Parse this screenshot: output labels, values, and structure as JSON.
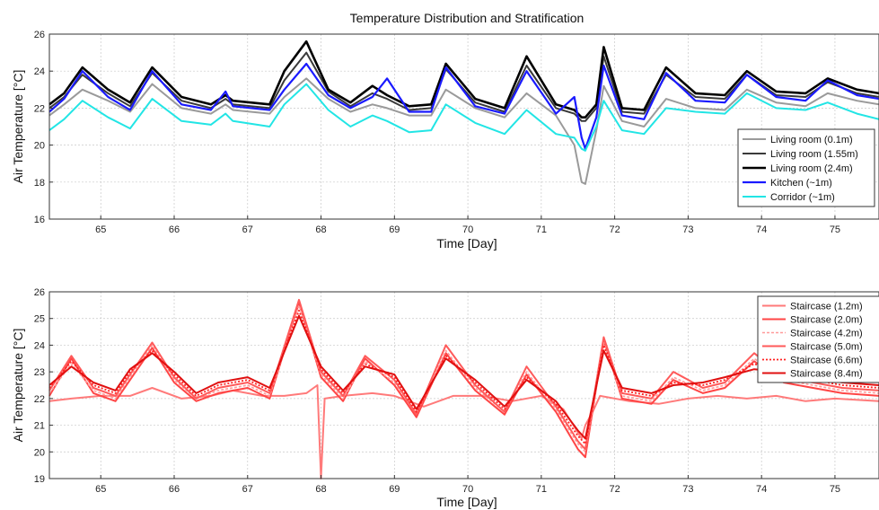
{
  "chart_data": [
    {
      "type": "line",
      "title": "Temperature Distribution and Stratification",
      "xlabel": "Time [Day]",
      "ylabel": "Air Temperature [°C]",
      "xlim": [
        64.3,
        75.6
      ],
      "ylim": [
        16,
        26
      ],
      "xticks": [
        65,
        66,
        67,
        68,
        69,
        70,
        71,
        72,
        73,
        74,
        75
      ],
      "yticks": [
        16,
        18,
        20,
        22,
        24,
        26
      ],
      "grid": true,
      "legend_position": "bottom-right",
      "series": [
        {
          "name": "Living room (0.1m)",
          "color": "#9a9a9a",
          "width": 2,
          "x": [
            64.3,
            64.5,
            64.75,
            65.1,
            65.4,
            65.7,
            66.1,
            66.5,
            66.7,
            66.8,
            67.3,
            67.5,
            67.8,
            68.1,
            68.4,
            68.7,
            68.9,
            69.2,
            69.5,
            69.7,
            70.1,
            70.5,
            70.8,
            71.2,
            71.45,
            71.55,
            71.6,
            71.75,
            71.85,
            72.1,
            72.4,
            72.7,
            73.1,
            73.5,
            73.8,
            74.2,
            74.6,
            74.9,
            75.3,
            75.6
          ],
          "y": [
            21.6,
            22.2,
            23.0,
            22.4,
            21.8,
            23.3,
            22.0,
            21.7,
            22.2,
            21.9,
            21.7,
            22.6,
            23.6,
            22.5,
            21.8,
            22.2,
            22.0,
            21.6,
            21.6,
            23.0,
            22.0,
            21.5,
            22.8,
            21.6,
            20.0,
            18.0,
            17.9,
            20.8,
            23.2,
            21.3,
            21.0,
            22.5,
            22.0,
            21.9,
            23.0,
            22.3,
            22.1,
            22.8,
            22.4,
            22.2
          ]
        },
        {
          "name": "Living room (1.55m)",
          "color": "#3a3a3a",
          "width": 2,
          "x": [
            64.3,
            64.5,
            64.75,
            65.1,
            65.4,
            65.7,
            66.1,
            66.5,
            66.7,
            66.8,
            67.3,
            67.5,
            67.8,
            68.1,
            68.4,
            68.7,
            68.9,
            69.2,
            69.5,
            69.7,
            70.1,
            70.5,
            70.8,
            71.2,
            71.45,
            71.55,
            71.6,
            71.75,
            71.85,
            72.1,
            72.4,
            72.7,
            73.1,
            73.5,
            73.8,
            74.2,
            74.6,
            74.9,
            75.3,
            75.6
          ],
          "y": [
            22.0,
            22.6,
            23.8,
            22.8,
            22.1,
            23.9,
            22.4,
            22.0,
            22.5,
            22.2,
            22.0,
            23.5,
            25.0,
            22.9,
            22.1,
            22.8,
            22.5,
            21.9,
            22.0,
            24.1,
            22.3,
            21.8,
            24.3,
            22.0,
            21.7,
            21.3,
            21.3,
            22.0,
            24.8,
            21.8,
            21.7,
            23.8,
            22.6,
            22.5,
            23.8,
            22.7,
            22.6,
            23.4,
            22.8,
            22.6
          ]
        },
        {
          "name": "Living room (2.4m)",
          "color": "#000000",
          "width": 2.6,
          "x": [
            64.3,
            64.5,
            64.75,
            65.1,
            65.4,
            65.7,
            66.1,
            66.5,
            66.7,
            66.8,
            67.3,
            67.5,
            67.8,
            68.1,
            68.4,
            68.7,
            68.9,
            69.2,
            69.5,
            69.7,
            70.1,
            70.5,
            70.8,
            71.2,
            71.45,
            71.55,
            71.6,
            71.75,
            71.85,
            72.1,
            72.4,
            72.7,
            73.1,
            73.5,
            73.8,
            74.2,
            74.6,
            74.9,
            75.3,
            75.6
          ],
          "y": [
            22.2,
            22.8,
            24.2,
            23.0,
            22.3,
            24.2,
            22.6,
            22.2,
            22.7,
            22.4,
            22.2,
            24.0,
            25.6,
            23.0,
            22.3,
            23.2,
            22.7,
            22.1,
            22.2,
            24.4,
            22.5,
            22.0,
            24.8,
            22.2,
            21.9,
            21.5,
            21.5,
            22.2,
            25.3,
            22.0,
            21.9,
            24.2,
            22.8,
            22.7,
            24.0,
            22.9,
            22.8,
            23.6,
            23.0,
            22.8
          ]
        },
        {
          "name": "Kitchen (~1m)",
          "color": "#1a1aff",
          "width": 2.2,
          "x": [
            64.3,
            64.5,
            64.75,
            65.1,
            65.4,
            65.7,
            66.1,
            66.5,
            66.7,
            66.8,
            67.3,
            67.5,
            67.8,
            68.1,
            68.4,
            68.7,
            68.9,
            69.2,
            69.5,
            69.7,
            70.1,
            70.5,
            70.8,
            71.2,
            71.45,
            71.55,
            71.6,
            71.75,
            71.85,
            72.1,
            72.4,
            72.7,
            73.1,
            73.5,
            73.8,
            74.2,
            74.6,
            74.9,
            75.3,
            75.6
          ],
          "y": [
            21.8,
            22.5,
            24.0,
            22.6,
            21.9,
            24.0,
            22.2,
            21.9,
            22.9,
            22.1,
            21.9,
            23.0,
            24.4,
            22.7,
            22.0,
            22.6,
            23.6,
            21.8,
            21.8,
            24.2,
            22.1,
            21.7,
            24.0,
            21.7,
            22.6,
            20.4,
            19.8,
            21.5,
            24.3,
            21.6,
            21.4,
            23.9,
            22.4,
            22.3,
            23.8,
            22.6,
            22.4,
            23.5,
            22.7,
            22.5
          ]
        },
        {
          "name": "Corridor (~1m)",
          "color": "#22e5e5",
          "width": 2,
          "x": [
            64.3,
            64.5,
            64.75,
            65.1,
            65.4,
            65.7,
            66.1,
            66.5,
            66.7,
            66.8,
            67.3,
            67.5,
            67.8,
            68.1,
            68.4,
            68.7,
            68.9,
            69.2,
            69.5,
            69.7,
            70.1,
            70.5,
            70.8,
            71.2,
            71.45,
            71.55,
            71.6,
            71.75,
            71.85,
            72.1,
            72.4,
            72.7,
            73.1,
            73.5,
            73.8,
            74.2,
            74.6,
            74.9,
            75.3,
            75.6
          ],
          "y": [
            20.8,
            21.4,
            22.4,
            21.5,
            20.9,
            22.5,
            21.3,
            21.1,
            21.7,
            21.3,
            21.0,
            22.2,
            23.3,
            21.9,
            21.0,
            21.6,
            21.3,
            20.7,
            20.8,
            22.2,
            21.2,
            20.6,
            21.9,
            20.6,
            20.4,
            19.8,
            19.7,
            21.0,
            22.4,
            20.8,
            20.6,
            22.0,
            21.8,
            21.7,
            22.8,
            22.0,
            21.9,
            22.3,
            21.7,
            21.4
          ]
        }
      ]
    },
    {
      "type": "line",
      "xlabel": "Time [Day]",
      "ylabel": "Air Temperature [°C]",
      "xlim": [
        64.3,
        75.6
      ],
      "ylim": [
        19,
        26
      ],
      "xticks": [
        65,
        66,
        67,
        68,
        69,
        70,
        71,
        72,
        73,
        74,
        75
      ],
      "yticks": [
        19,
        20,
        21,
        22,
        23,
        24,
        25,
        26
      ],
      "grid": true,
      "legend_position": "top-right",
      "series": [
        {
          "name": "Staircase (1.2m)",
          "color": "#ff7a7a",
          "width": 2,
          "dash": "",
          "x": [
            64.3,
            64.6,
            65.0,
            65.4,
            65.7,
            66.1,
            66.5,
            66.8,
            67.2,
            67.5,
            67.8,
            67.95,
            68.0,
            68.05,
            68.3,
            68.7,
            69.0,
            69.4,
            69.8,
            70.2,
            70.6,
            71.0,
            71.3,
            71.55,
            71.6,
            71.7,
            71.8,
            72.2,
            72.6,
            73.0,
            73.4,
            73.8,
            74.2,
            74.6,
            75.0,
            75.6
          ],
          "y": [
            21.9,
            22.0,
            22.1,
            22.1,
            22.4,
            22.0,
            22.1,
            22.3,
            22.1,
            22.1,
            22.2,
            22.5,
            19.0,
            22.0,
            22.1,
            22.2,
            22.1,
            21.7,
            22.1,
            22.1,
            21.9,
            22.1,
            21.6,
            20.5,
            21.0,
            21.5,
            22.1,
            21.9,
            21.8,
            22.0,
            22.1,
            22.0,
            22.1,
            21.9,
            22.0,
            21.9
          ]
        },
        {
          "name": "Staircase (2.0m)",
          "color": "#ff4545",
          "width": 2,
          "dash": "",
          "x": [
            64.3,
            64.6,
            64.9,
            65.2,
            65.4,
            65.7,
            66.0,
            66.3,
            66.6,
            67.0,
            67.3,
            67.7,
            68.0,
            68.3,
            68.6,
            69.0,
            69.3,
            69.7,
            70.1,
            70.5,
            70.8,
            71.2,
            71.5,
            71.6,
            71.85,
            72.1,
            72.5,
            72.8,
            73.2,
            73.5,
            73.9,
            74.3,
            74.7,
            75.1,
            75.6
          ],
          "y": [
            22.1,
            23.5,
            22.2,
            21.9,
            22.7,
            23.9,
            22.6,
            21.9,
            22.2,
            22.4,
            22.0,
            25.6,
            22.8,
            21.9,
            23.5,
            22.5,
            21.3,
            23.7,
            22.3,
            21.4,
            22.9,
            21.5,
            20.1,
            19.8,
            24.2,
            22.0,
            21.8,
            22.7,
            22.2,
            22.4,
            23.4,
            22.6,
            22.4,
            22.2,
            22.1
          ]
        },
        {
          "name": "Staircase (4.2m)",
          "color": "#ff9a9a",
          "width": 1.6,
          "dash": "3,2",
          "x": [
            64.3,
            64.6,
            64.9,
            65.2,
            65.4,
            65.7,
            66.0,
            66.3,
            66.6,
            67.0,
            67.3,
            67.7,
            68.0,
            68.3,
            68.6,
            69.0,
            69.3,
            69.7,
            70.1,
            70.5,
            70.8,
            71.2,
            71.5,
            71.6,
            71.85,
            72.1,
            72.5,
            72.8,
            73.2,
            73.5,
            73.9,
            74.3,
            74.7,
            75.1,
            75.6
          ],
          "y": [
            22.2,
            23.3,
            22.3,
            22.0,
            22.8,
            24.0,
            22.7,
            22.0,
            22.3,
            22.5,
            22.1,
            25.5,
            22.9,
            22.0,
            23.4,
            22.6,
            21.4,
            23.8,
            22.4,
            21.5,
            23.0,
            21.6,
            20.3,
            20.0,
            24.1,
            22.1,
            21.9,
            22.8,
            22.3,
            22.5,
            23.5,
            22.7,
            22.5,
            22.3,
            22.2
          ]
        },
        {
          "name": "Staircase (5.0m)",
          "color": "#ff5a5a",
          "width": 2,
          "dash": "",
          "x": [
            64.3,
            64.6,
            64.9,
            65.2,
            65.4,
            65.7,
            66.0,
            66.3,
            66.6,
            67.0,
            67.3,
            67.7,
            68.0,
            68.3,
            68.6,
            69.0,
            69.3,
            69.7,
            70.1,
            70.5,
            70.8,
            71.2,
            71.5,
            71.6,
            71.85,
            72.1,
            72.5,
            72.8,
            73.2,
            73.5,
            73.9,
            74.3,
            74.7,
            75.1,
            75.6
          ],
          "y": [
            22.3,
            23.6,
            22.4,
            22.1,
            22.9,
            24.1,
            22.8,
            22.0,
            22.4,
            22.6,
            22.2,
            25.7,
            23.0,
            22.1,
            23.6,
            22.7,
            21.4,
            24.0,
            22.5,
            21.5,
            23.2,
            21.7,
            20.4,
            20.1,
            24.3,
            22.2,
            22.0,
            23.0,
            22.4,
            22.6,
            23.7,
            22.8,
            22.6,
            22.4,
            22.3
          ]
        },
        {
          "name": "Staircase (6.6m)",
          "color": "#ff2020",
          "width": 1.8,
          "dash": "2,2",
          "x": [
            64.3,
            64.6,
            64.9,
            65.2,
            65.4,
            65.7,
            66.0,
            66.3,
            66.6,
            67.0,
            67.3,
            67.7,
            68.0,
            68.3,
            68.6,
            69.0,
            69.3,
            69.7,
            70.1,
            70.5,
            70.8,
            71.2,
            71.5,
            71.6,
            71.85,
            72.1,
            72.5,
            72.8,
            73.2,
            73.5,
            73.9,
            74.3,
            74.7,
            75.1,
            75.6
          ],
          "y": [
            22.4,
            23.4,
            22.5,
            22.2,
            23.0,
            23.8,
            22.9,
            22.1,
            22.5,
            22.7,
            22.3,
            25.3,
            23.1,
            22.2,
            23.3,
            22.8,
            21.5,
            23.6,
            22.6,
            21.6,
            22.8,
            21.8,
            20.6,
            20.3,
            24.0,
            22.3,
            22.1,
            22.6,
            22.5,
            22.7,
            23.3,
            22.9,
            22.7,
            22.5,
            22.4
          ]
        },
        {
          "name": "Staircase (8.4m)",
          "color": "#e01010",
          "width": 2,
          "dash": "",
          "x": [
            64.3,
            64.6,
            64.9,
            65.2,
            65.4,
            65.7,
            66.0,
            66.3,
            66.6,
            67.0,
            67.3,
            67.7,
            68.0,
            68.3,
            68.6,
            69.0,
            69.3,
            69.7,
            70.1,
            70.5,
            70.8,
            71.2,
            71.5,
            71.6,
            71.85,
            72.1,
            72.5,
            72.8,
            73.2,
            73.5,
            73.9,
            74.3,
            74.7,
            75.1,
            75.6
          ],
          "y": [
            22.5,
            23.2,
            22.6,
            22.3,
            23.1,
            23.7,
            23.0,
            22.2,
            22.6,
            22.8,
            22.4,
            25.1,
            23.2,
            22.3,
            23.2,
            22.9,
            21.6,
            23.5,
            22.7,
            21.7,
            22.7,
            21.9,
            20.8,
            20.5,
            23.8,
            22.4,
            22.2,
            22.5,
            22.6,
            22.8,
            23.1,
            23.0,
            22.8,
            22.6,
            22.5
          ]
        }
      ]
    }
  ]
}
